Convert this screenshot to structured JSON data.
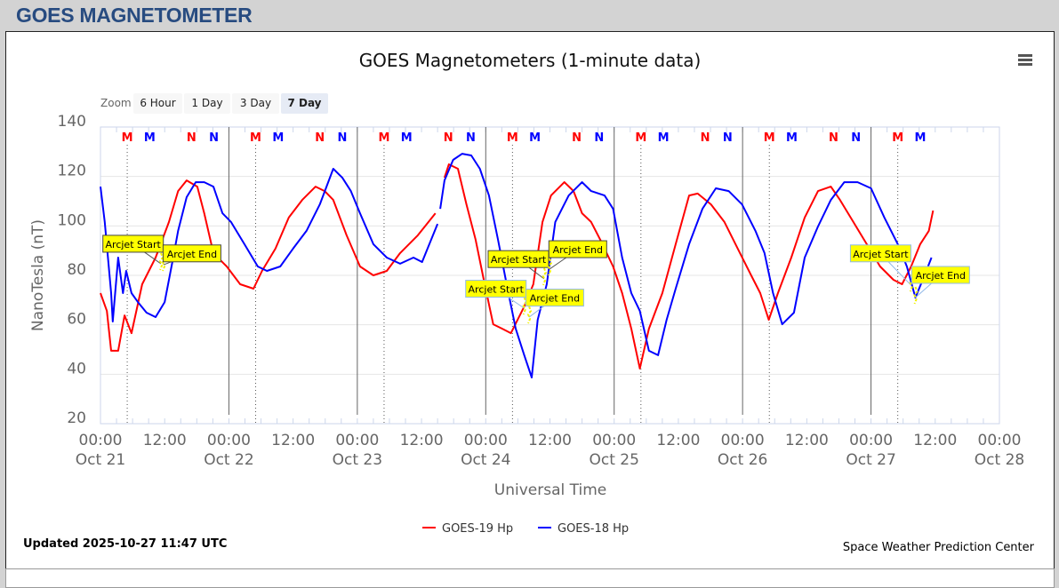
{
  "header": {
    "title": "GOES MAGNETOMETER"
  },
  "zoom": {
    "label": "Zoom",
    "buttons": [
      "6 Hour",
      "1 Day",
      "3 Day",
      "7 Day"
    ],
    "selected": "7 Day"
  },
  "footer": {
    "updated": "Updated 2025-10-27 11:47 UTC",
    "credit": "Space Weather Prediction Center"
  },
  "colors": {
    "goes19": "#ff0000",
    "goes18": "#0000ff",
    "header": "#274b80"
  },
  "chart_data": {
    "type": "line",
    "title": "GOES Magnetometers (1-minute data)",
    "xlabel": "Universal Time",
    "ylabel": "NanoTesla (nT)",
    "x_units": "hours since Oct 21 00:00 UTC",
    "xlim": [
      0,
      168
    ],
    "ylim": [
      20,
      140
    ],
    "yticks": [
      "20",
      "40",
      "60",
      "80",
      "100",
      "120",
      "140"
    ],
    "xticks": [
      {
        "time": "00:00",
        "date": "Oct 21"
      },
      {
        "time": "12:00",
        "date": ""
      },
      {
        "time": "00:00",
        "date": "Oct 22"
      },
      {
        "time": "12:00",
        "date": ""
      },
      {
        "time": "00:00",
        "date": "Oct 23"
      },
      {
        "time": "12:00",
        "date": ""
      },
      {
        "time": "00:00",
        "date": "Oct 24"
      },
      {
        "time": "12:00",
        "date": ""
      },
      {
        "time": "00:00",
        "date": "Oct 25"
      },
      {
        "time": "12:00",
        "date": ""
      },
      {
        "time": "00:00",
        "date": "Oct 26"
      },
      {
        "time": "12:00",
        "date": ""
      },
      {
        "time": "00:00",
        "date": "Oct 27"
      },
      {
        "time": "12:00",
        "date": ""
      },
      {
        "time": "00:00",
        "date": "Oct 28"
      }
    ],
    "grid": true,
    "legend": "bottom-center",
    "series": [
      {
        "name": "GOES-19 Hp",
        "color": "#ff0000",
        "x": [
          0,
          1.2,
          2.0,
          3.3,
          4.5,
          5.8,
          7.8,
          10.3,
          12.8,
          14.5,
          16.1,
          18.1,
          19.4,
          21.1,
          23.6,
          26.1,
          28.6,
          30.2,
          32.7,
          35.2,
          37.7,
          40.2,
          41.9,
          43.5,
          46.0,
          48.5,
          51.0,
          53.5,
          56.0,
          59.3,
          62.6,
          63.2,
          64.3,
          65.1,
          66.8,
          68.4,
          70.1,
          71.8,
          73.4,
          75.1,
          76.7,
          79.2,
          80.9,
          82.6,
          84.2,
          86.7,
          88.4,
          90.0,
          91.7,
          93.4,
          95.8,
          97.5,
          99.2,
          100.8,
          102.5,
          105.0,
          107.5,
          110.0,
          111.6,
          114.1,
          116.6,
          119.1,
          121.6,
          123.3,
          124.9,
          126.6,
          129.1,
          131.6,
          134.1,
          136.5,
          138.2,
          140.7,
          143.2,
          145.7,
          148.2,
          149.8,
          151.5,
          153.2,
          154.8,
          155.6
        ],
        "y": [
          72.8,
          65.6,
          49.5,
          49.5,
          63.8,
          56.6,
          76.4,
          87.2,
          101.6,
          114.1,
          118.4,
          115.9,
          105.1,
          89.0,
          83.6,
          76.4,
          74.6,
          81.8,
          90.8,
          103.4,
          110.5,
          115.9,
          114.1,
          110.5,
          96.2,
          83.6,
          80.0,
          81.8,
          89.0,
          96.2,
          105.1,
          null,
          119.5,
          124.9,
          123.1,
          108.7,
          94.4,
          76.4,
          60.2,
          58.4,
          56.6,
          67.4,
          76.4,
          101.6,
          112.3,
          117.7,
          114.1,
          105.1,
          101.6,
          94.4,
          83.6,
          72.8,
          58.4,
          42.3,
          58.4,
          72.8,
          92.6,
          112.3,
          113.1,
          108.7,
          101.6,
          90.8,
          80.0,
          72.8,
          62.0,
          72.8,
          87.2,
          103.4,
          114.1,
          115.9,
          110.5,
          101.6,
          92.6,
          83.6,
          78.2,
          76.4,
          83.6,
          92.6,
          98.0,
          106.2
        ]
      },
      {
        "name": "GOES-18 Hp",
        "color": "#0000ff",
        "x": [
          0,
          0.8,
          2.0,
          2.3,
          3.3,
          4.2,
          4.8,
          5.8,
          7.0,
          8.6,
          10.3,
          12.0,
          13.6,
          14.5,
          16.1,
          17.8,
          19.4,
          21.1,
          22.8,
          24.4,
          26.9,
          29.4,
          31.1,
          33.6,
          36.0,
          38.5,
          41.0,
          43.5,
          45.2,
          46.8,
          48.5,
          51.0,
          53.5,
          56.0,
          58.5,
          60.1,
          63.0,
          63.2,
          63.5,
          64.3,
          65.9,
          67.6,
          69.3,
          70.9,
          72.6,
          74.3,
          75.9,
          77.6,
          79.2,
          80.6,
          81.7,
          83.4,
          85.0,
          87.5,
          90.0,
          91.7,
          94.2,
          95.8,
          97.5,
          99.2,
          100.8,
          102.5,
          104.2,
          105.8,
          107.5,
          110.0,
          112.5,
          115.0,
          117.4,
          119.9,
          122.4,
          124.1,
          125.7,
          127.4,
          129.6,
          131.6,
          134.1,
          136.5,
          139.0,
          141.5,
          144.0,
          146.5,
          149.0,
          150.7,
          152.3,
          154.0,
          155.3
        ],
        "y": [
          115.9,
          101.6,
          72.8,
          61.3,
          87.2,
          72.8,
          81.8,
          72.8,
          69.2,
          64.9,
          63.1,
          69.2,
          87.2,
          98.0,
          111.6,
          117.7,
          117.7,
          115.9,
          105.1,
          101.6,
          92.6,
          83.6,
          81.8,
          83.6,
          90.8,
          98.0,
          108.7,
          123.1,
          119.5,
          114.1,
          105.1,
          92.6,
          87.2,
          84.7,
          87.2,
          85.4,
          100.8,
          null,
          106.9,
          118.4,
          126.7,
          129.2,
          128.5,
          123.1,
          112.3,
          94.4,
          76.4,
          58.4,
          47.7,
          38.7,
          62.0,
          76.4,
          101.6,
          112.3,
          117.7,
          114.1,
          112.3,
          106.9,
          87.2,
          72.8,
          65.6,
          49.5,
          47.7,
          62.0,
          74.6,
          92.6,
          106.9,
          115.2,
          114.1,
          108.7,
          98.0,
          89.0,
          72.8,
          60.2,
          64.9,
          87.2,
          99.8,
          110.5,
          117.7,
          117.7,
          115.2,
          103.4,
          92.6,
          83.6,
          71.0,
          80.0,
          87.2
        ]
      }
    ],
    "markers": [
      {
        "label": "M",
        "series": "GOES-19 Hp",
        "hours": [
          5,
          29,
          53,
          77,
          101,
          125,
          149
        ]
      },
      {
        "label": "M",
        "series": "GOES-18 Hp",
        "hours": [
          9.2,
          33.2,
          57.2,
          81.2,
          105.2,
          129.2,
          153.2
        ]
      },
      {
        "label": "N",
        "series": "GOES-19 Hp",
        "hours": [
          17,
          41,
          65,
          89,
          113,
          137
        ]
      },
      {
        "label": "N",
        "series": "GOES-18 Hp",
        "hours": [
          21.2,
          45.2,
          69.2,
          93.2,
          117.2,
          141.2
        ]
      }
    ],
    "annotations": [
      {
        "text": "Arcjet Start",
        "x": 6.1,
        "y": 92.6,
        "target_x": 11.3,
        "target_y": 84.7,
        "style": "dark"
      },
      {
        "text": "Arcjet End",
        "x": 17.1,
        "y": 88.7,
        "target_x": 11.8,
        "target_y": 84.3,
        "style": "dark"
      },
      {
        "text": "Arcjet Start",
        "x": 78.1,
        "y": 86.4,
        "target_x": 82.9,
        "target_y": 78.6,
        "style": "dark"
      },
      {
        "text": "Arcjet End",
        "x": 89.2,
        "y": 90.4,
        "target_x": 83.9,
        "target_y": 82.5,
        "style": "dark"
      },
      {
        "text": "Arcjet Start",
        "x": 73.9,
        "y": 74.4,
        "target_x": 79.2,
        "target_y": 66.7,
        "style": "light"
      },
      {
        "text": "Arcjet End",
        "x": 84.9,
        "y": 70.8,
        "target_x": 80.1,
        "target_y": 63.1,
        "style": "light"
      },
      {
        "text": "Arcjet Start",
        "x": 145.8,
        "y": 88.7,
        "target_x": 151.5,
        "target_y": 76.0,
        "style": "light"
      },
      {
        "text": "Arcjet End",
        "x": 157.0,
        "y": 80.0,
        "target_x": 152.3,
        "target_y": 71.0,
        "style": "light"
      }
    ]
  }
}
